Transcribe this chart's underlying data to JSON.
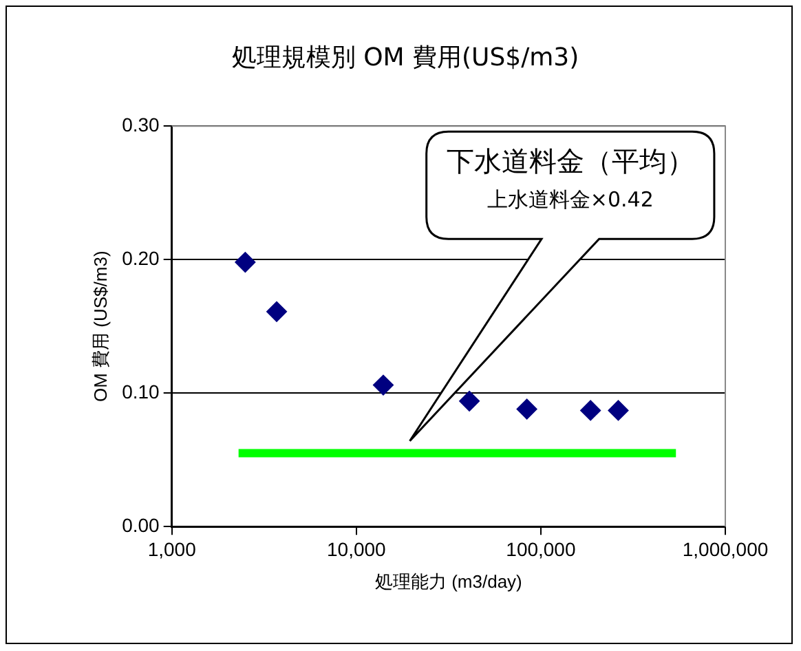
{
  "chart_data": {
    "type": "scatter",
    "title": "処理規模別 OM 費用(US$/m3)",
    "xlabel": "処理能力 (m3/day)",
    "ylabel": "OM 費用 (US$/m3)",
    "log": "x",
    "xlim": [
      1000,
      1000000
    ],
    "xticks": [
      {
        "value": 1000,
        "label": "1,000"
      },
      {
        "value": 10000,
        "label": "10,000"
      },
      {
        "value": 100000,
        "label": "100,000"
      },
      {
        "value": 1000000,
        "label": "1,000,000"
      }
    ],
    "ylim": [
      0,
      0.3
    ],
    "yticks": [
      {
        "value": 0,
        "label": "0.00"
      },
      {
        "value": 0.1,
        "label": "0.10"
      },
      {
        "value": 0.2,
        "label": "0.20"
      },
      {
        "value": 0.3,
        "label": "0.30"
      }
    ],
    "grid": "y",
    "legend": false,
    "marker": "diamond",
    "series": [
      {
        "color": "#000080",
        "x": [
          2500,
          3700,
          14000,
          41000,
          84000,
          186000,
          263000
        ],
        "values": [
          0.198,
          0.161,
          0.106,
          0.094,
          0.088,
          0.087,
          0.087
        ]
      },
      {
        "type": "line",
        "marker": "none",
        "color": "#00ff00",
        "x": [
          2300,
          540000
        ],
        "values": [
          0.055,
          0.055
        ]
      }
    ],
    "annotations": [
      "下水道料金（平均）",
      "上水道料金×0.42"
    ]
  }
}
